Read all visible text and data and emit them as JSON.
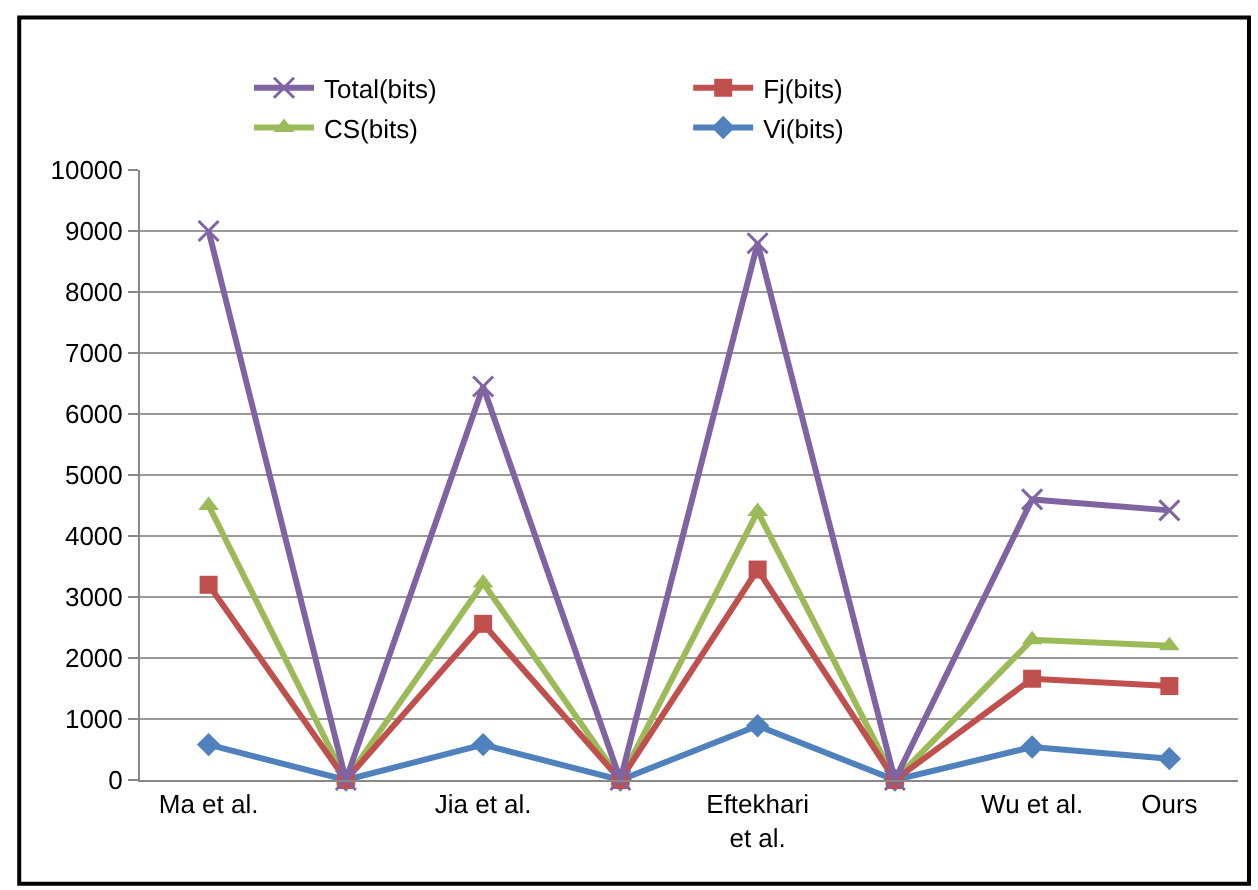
{
  "chart_data": {
    "type": "line",
    "categories": [
      "Ma et al.",
      null,
      "Jia et al.",
      null,
      "Eftekhari et al.",
      null,
      "Wu et al.",
      "Ours"
    ],
    "series": [
      {
        "name": "Total(bits)",
        "color": "#8064a2",
        "marker": "cross",
        "values": [
          9000,
          0,
          6450,
          0,
          8800,
          0,
          4600,
          4420
        ]
      },
      {
        "name": "Fj(bits)",
        "color": "#c0504d",
        "marker": "square",
        "values": [
          3200,
          0,
          2560,
          0,
          3450,
          0,
          1660,
          1540
        ]
      },
      {
        "name": "CS(bits)",
        "color": "#9bbb59",
        "marker": "triangle",
        "values": [
          4500,
          0,
          3230,
          0,
          4400,
          0,
          2300,
          2200
        ]
      },
      {
        "name": "Vi(bits)",
        "color": "#4f81bd",
        "marker": "diamond",
        "values": [
          580,
          0,
          580,
          0,
          890,
          0,
          540,
          350
        ]
      }
    ],
    "ylim": [
      0,
      10000
    ],
    "yticks": [
      0,
      1000,
      2000,
      3000,
      4000,
      5000,
      6000,
      7000,
      8000,
      9000,
      10000
    ],
    "grid": "y",
    "legend": "top",
    "line_style": "solid"
  }
}
